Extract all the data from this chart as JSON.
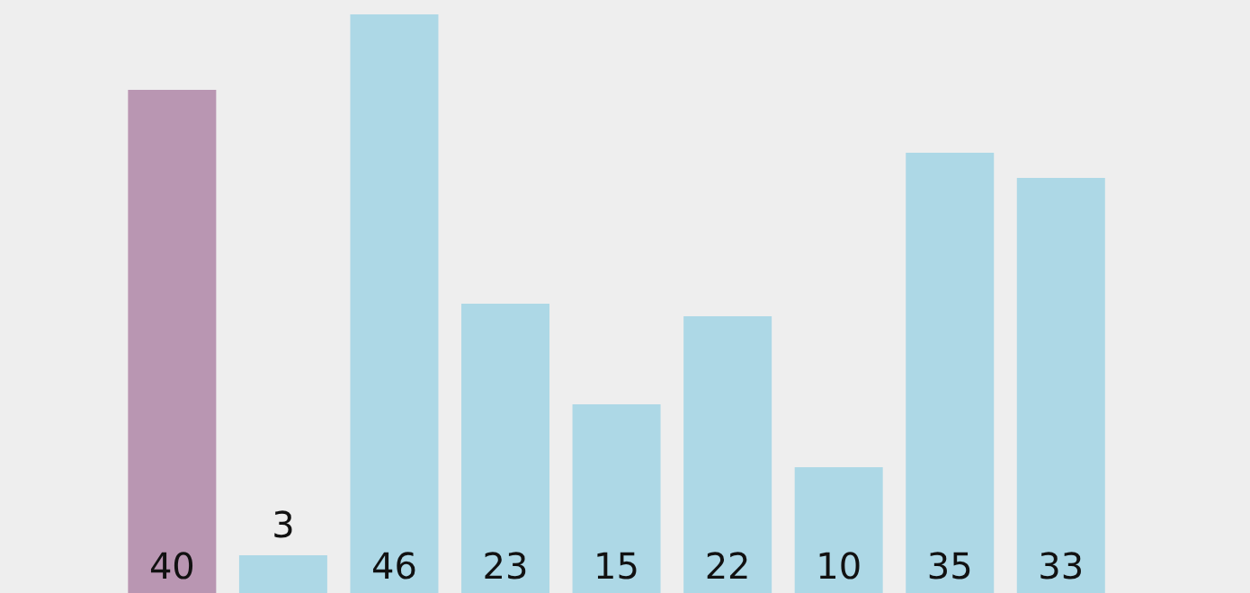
{
  "chart_data": {
    "type": "bar",
    "categories": [
      null,
      null,
      null,
      null,
      null,
      null,
      null,
      null,
      null
    ],
    "values": [
      40,
      3,
      46,
      23,
      15,
      22,
      10,
      35,
      33
    ],
    "colors": [
      "#b996b2",
      "#add8e6",
      "#add8e6",
      "#add8e6",
      "#add8e6",
      "#add8e6",
      "#add8e6",
      "#add8e6",
      "#add8e6"
    ],
    "data_labels": true
  }
}
